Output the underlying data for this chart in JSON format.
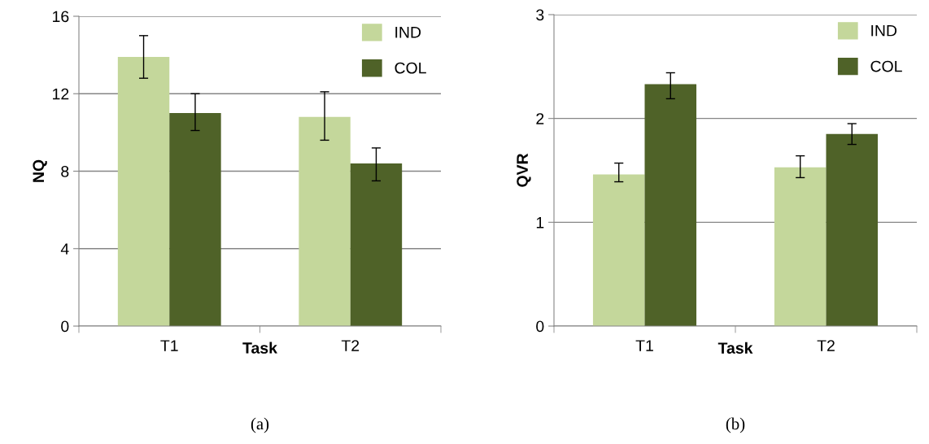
{
  "chart_data": [
    {
      "type": "bar",
      "categories": [
        "T1",
        "T2"
      ],
      "xlabel": "Task",
      "ylabel": "NQ",
      "ylim": [
        0,
        16
      ],
      "yticks": [
        0,
        4,
        8,
        12,
        16
      ],
      "grid": "y",
      "legend": "top right",
      "annotations": [
        "(a)"
      ],
      "series": [
        {
          "name": "IND",
          "color": "#c4d79b",
          "values": [
            13.9,
            10.8
          ],
          "errors": [
            [
              12.8,
              15.0
            ],
            [
              9.6,
              12.1
            ]
          ]
        },
        {
          "name": "COL",
          "color": "#4f6228",
          "values": [
            11.0,
            8.4
          ],
          "errors": [
            [
              10.1,
              12.0
            ],
            [
              7.5,
              9.2
            ]
          ]
        }
      ]
    },
    {
      "type": "bar",
      "categories": [
        "T1",
        "T2"
      ],
      "xlabel": "Task",
      "ylabel": "QVR",
      "ylim": [
        0,
        3
      ],
      "yticks": [
        0,
        1,
        2,
        3
      ],
      "grid": "y",
      "legend": "top right",
      "annotations": [
        "(b)"
      ],
      "series": [
        {
          "name": "IND",
          "color": "#c4d79b",
          "values": [
            1.46,
            1.53
          ],
          "errors": [
            [
              1.39,
              1.57
            ],
            [
              1.43,
              1.64
            ]
          ]
        },
        {
          "name": "COL",
          "color": "#4f6228",
          "values": [
            2.33,
            1.85
          ],
          "errors": [
            [
              2.19,
              2.44
            ],
            [
              1.75,
              1.95
            ]
          ]
        }
      ]
    }
  ]
}
